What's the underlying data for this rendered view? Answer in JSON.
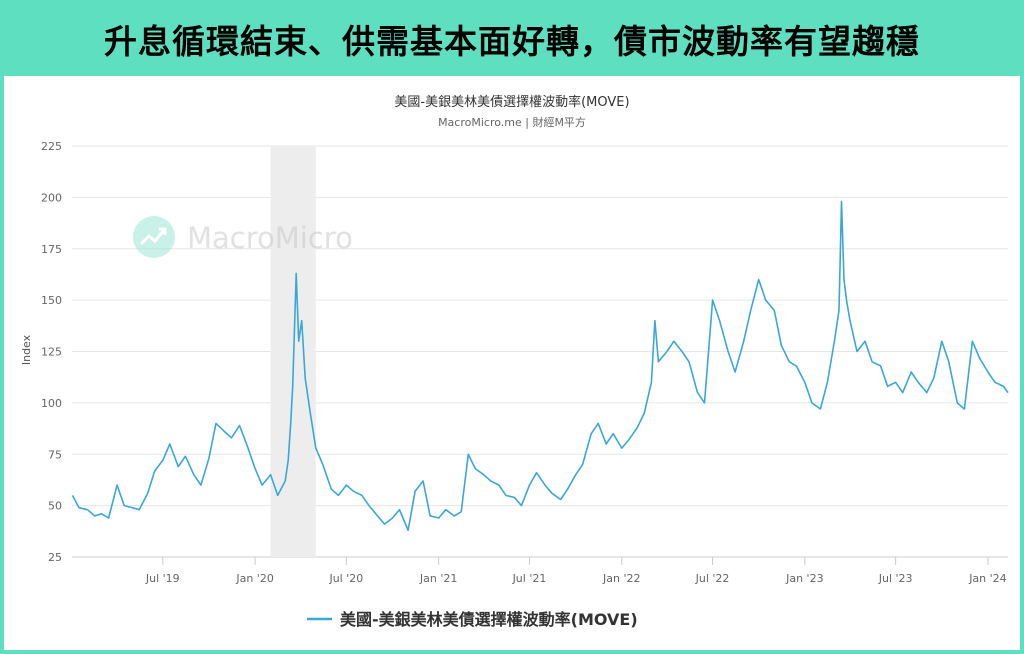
{
  "banner": {
    "headline": "升息循環結束、供需基本面好轉，債市波動率有望趨穩"
  },
  "chart_header": {
    "title": "美國-美銀美林美債選擇權波動率(MOVE)",
    "subtitle": "MacroMicro.me | 財經M平方"
  },
  "watermark": {
    "text": "MacroMicro",
    "icon": "macromicro-logo-icon"
  },
  "colors": {
    "accent": "#5ee0c0",
    "series": "#3aa7d9",
    "recession_band": "#ededed",
    "grid": "#e6e6e6"
  },
  "chart_data": {
    "type": "line",
    "title": "美國-美銀美林美債選擇權波動率(MOVE)",
    "subtitle": "MacroMicro.me | 財經M平方",
    "xlabel": "",
    "ylabel": "Index",
    "ylim": [
      25,
      225
    ],
    "xlim": [
      "2019-01-01",
      "2024-02-10"
    ],
    "yticks": [
      25,
      50,
      75,
      100,
      125,
      150,
      175,
      200,
      225
    ],
    "xticks": [
      {
        "date": "2019-07-01",
        "label": "Jul '19"
      },
      {
        "date": "2020-01-01",
        "label": "Jan '20"
      },
      {
        "date": "2020-07-01",
        "label": "Jul '20"
      },
      {
        "date": "2021-01-01",
        "label": "Jan '21"
      },
      {
        "date": "2021-07-01",
        "label": "Jul '21"
      },
      {
        "date": "2022-01-01",
        "label": "Jan '22"
      },
      {
        "date": "2022-07-01",
        "label": "Jul '22"
      },
      {
        "date": "2023-01-01",
        "label": "Jan '23"
      },
      {
        "date": "2023-07-01",
        "label": "Jul '23"
      },
      {
        "date": "2024-01-01",
        "label": "Jan '24"
      }
    ],
    "shaded_periods": [
      {
        "from": "2020-02-01",
        "to": "2020-05-01"
      }
    ],
    "grid": "horizontal",
    "legend": "bottom-center",
    "series": [
      {
        "name": "美國-美銀美林美債選擇權波動率(MOVE)",
        "points": [
          [
            "2019-01-02",
            55
          ],
          [
            "2019-01-15",
            49
          ],
          [
            "2019-02-01",
            48
          ],
          [
            "2019-02-15",
            45
          ],
          [
            "2019-03-01",
            46
          ],
          [
            "2019-03-15",
            44
          ],
          [
            "2019-04-01",
            60
          ],
          [
            "2019-04-15",
            50
          ],
          [
            "2019-05-01",
            49
          ],
          [
            "2019-05-15",
            48
          ],
          [
            "2019-06-01",
            56
          ],
          [
            "2019-06-15",
            67
          ],
          [
            "2019-07-01",
            72
          ],
          [
            "2019-07-15",
            80
          ],
          [
            "2019-08-01",
            69
          ],
          [
            "2019-08-15",
            74
          ],
          [
            "2019-09-01",
            65
          ],
          [
            "2019-09-15",
            60
          ],
          [
            "2019-10-01",
            73
          ],
          [
            "2019-10-15",
            90
          ],
          [
            "2019-11-01",
            86
          ],
          [
            "2019-11-15",
            83
          ],
          [
            "2019-12-01",
            89
          ],
          [
            "2019-12-15",
            80
          ],
          [
            "2020-01-01",
            68
          ],
          [
            "2020-01-15",
            60
          ],
          [
            "2020-02-01",
            65
          ],
          [
            "2020-02-15",
            55
          ],
          [
            "2020-03-01",
            62
          ],
          [
            "2020-03-07",
            72
          ],
          [
            "2020-03-12",
            90
          ],
          [
            "2020-03-16",
            108
          ],
          [
            "2020-03-23",
            163
          ],
          [
            "2020-03-28",
            130
          ],
          [
            "2020-04-03",
            140
          ],
          [
            "2020-04-10",
            112
          ],
          [
            "2020-04-20",
            95
          ],
          [
            "2020-05-01",
            78
          ],
          [
            "2020-05-15",
            70
          ],
          [
            "2020-06-01",
            58
          ],
          [
            "2020-06-15",
            55
          ],
          [
            "2020-07-01",
            60
          ],
          [
            "2020-07-15",
            57
          ],
          [
            "2020-08-01",
            55
          ],
          [
            "2020-08-15",
            50
          ],
          [
            "2020-09-01",
            45
          ],
          [
            "2020-09-15",
            41
          ],
          [
            "2020-10-01",
            44
          ],
          [
            "2020-10-15",
            48
          ],
          [
            "2020-11-01",
            38
          ],
          [
            "2020-11-15",
            57
          ],
          [
            "2020-12-01",
            62
          ],
          [
            "2020-12-15",
            45
          ],
          [
            "2021-01-01",
            44
          ],
          [
            "2021-01-15",
            48
          ],
          [
            "2021-02-01",
            45
          ],
          [
            "2021-02-15",
            47
          ],
          [
            "2021-03-01",
            75
          ],
          [
            "2021-03-15",
            68
          ],
          [
            "2021-04-01",
            65
          ],
          [
            "2021-04-15",
            62
          ],
          [
            "2021-05-01",
            60
          ],
          [
            "2021-05-15",
            55
          ],
          [
            "2021-06-01",
            54
          ],
          [
            "2021-06-15",
            50
          ],
          [
            "2021-07-01",
            60
          ],
          [
            "2021-07-15",
            66
          ],
          [
            "2021-08-01",
            60
          ],
          [
            "2021-08-15",
            56
          ],
          [
            "2021-09-01",
            53
          ],
          [
            "2021-09-15",
            58
          ],
          [
            "2021-10-01",
            65
          ],
          [
            "2021-10-15",
            70
          ],
          [
            "2021-11-01",
            85
          ],
          [
            "2021-11-15",
            90
          ],
          [
            "2021-12-01",
            80
          ],
          [
            "2021-12-15",
            85
          ],
          [
            "2022-01-01",
            78
          ],
          [
            "2022-01-15",
            82
          ],
          [
            "2022-02-01",
            88
          ],
          [
            "2022-02-15",
            95
          ],
          [
            "2022-03-01",
            110
          ],
          [
            "2022-03-08",
            140
          ],
          [
            "2022-03-15",
            120
          ],
          [
            "2022-04-01",
            125
          ],
          [
            "2022-04-15",
            130
          ],
          [
            "2022-05-01",
            125
          ],
          [
            "2022-05-15",
            120
          ],
          [
            "2022-06-01",
            105
          ],
          [
            "2022-06-15",
            100
          ],
          [
            "2022-07-01",
            150
          ],
          [
            "2022-07-15",
            140
          ],
          [
            "2022-08-01",
            125
          ],
          [
            "2022-08-15",
            115
          ],
          [
            "2022-09-01",
            130
          ],
          [
            "2022-09-15",
            145
          ],
          [
            "2022-10-01",
            160
          ],
          [
            "2022-10-15",
            150
          ],
          [
            "2022-11-01",
            145
          ],
          [
            "2022-11-15",
            128
          ],
          [
            "2022-12-01",
            120
          ],
          [
            "2022-12-15",
            118
          ],
          [
            "2023-01-01",
            110
          ],
          [
            "2023-01-15",
            100
          ],
          [
            "2023-02-01",
            97
          ],
          [
            "2023-02-15",
            110
          ],
          [
            "2023-03-01",
            130
          ],
          [
            "2023-03-10",
            145
          ],
          [
            "2023-03-15",
            198
          ],
          [
            "2023-03-20",
            160
          ],
          [
            "2023-03-25",
            150
          ],
          [
            "2023-04-01",
            140
          ],
          [
            "2023-04-15",
            125
          ],
          [
            "2023-05-01",
            130
          ],
          [
            "2023-05-15",
            120
          ],
          [
            "2023-06-01",
            118
          ],
          [
            "2023-06-15",
            108
          ],
          [
            "2023-07-01",
            110
          ],
          [
            "2023-07-15",
            105
          ],
          [
            "2023-08-01",
            115
          ],
          [
            "2023-08-15",
            110
          ],
          [
            "2023-09-01",
            105
          ],
          [
            "2023-09-15",
            112
          ],
          [
            "2023-10-01",
            130
          ],
          [
            "2023-10-15",
            120
          ],
          [
            "2023-11-01",
            100
          ],
          [
            "2023-11-15",
            97
          ],
          [
            "2023-12-01",
            130
          ],
          [
            "2023-12-15",
            122
          ],
          [
            "2024-01-01",
            115
          ],
          [
            "2024-01-15",
            110
          ],
          [
            "2024-02-01",
            108
          ],
          [
            "2024-02-10",
            105
          ]
        ]
      }
    ]
  }
}
